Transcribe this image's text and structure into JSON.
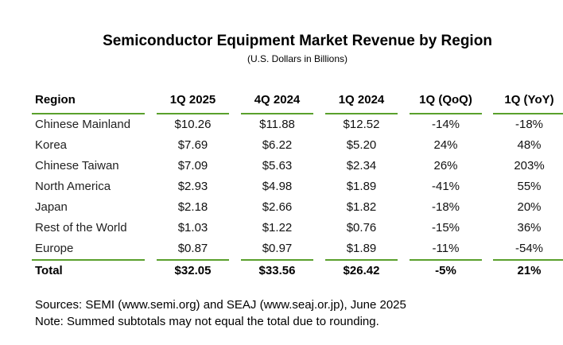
{
  "title": "Semiconductor Equipment Market Revenue by Region",
  "subtitle": "(U.S. Dollars in Billions)",
  "columns": [
    "Region",
    "1Q 2025",
    "4Q 2024",
    "1Q 2024",
    "1Q (QoQ)",
    "1Q (YoY)"
  ],
  "rows": [
    [
      "Chinese Mainland",
      "$10.26",
      "$11.88",
      "$12.52",
      "-14%",
      "-18%"
    ],
    [
      "Korea",
      "$7.69",
      "$6.22",
      "$5.20",
      "24%",
      "48%"
    ],
    [
      "Chinese Taiwan",
      "$7.09",
      "$5.63",
      "$2.34",
      "26%",
      "203%"
    ],
    [
      "North America",
      "$2.93",
      "$4.98",
      "$1.89",
      "-41%",
      "55%"
    ],
    [
      "Japan",
      "$2.18",
      "$2.66",
      "$1.82",
      "-18%",
      "20%"
    ],
    [
      "Rest of the World",
      "$1.03",
      "$1.22",
      "$0.76",
      "-15%",
      "36%"
    ],
    [
      "Europe",
      "$0.87",
      "$0.97",
      "$1.89",
      "-11%",
      "-54%"
    ]
  ],
  "total": [
    "Total",
    "$32.05",
    "$33.56",
    "$26.42",
    "-5%",
    "21%"
  ],
  "sources": "Sources: SEMI (www.semi.org) and SEAJ (www.seaj.or.jp), June 2025",
  "note": "Note: Summed subtotals may not equal the total due to rounding.",
  "colors": {
    "rule": "#5aa02c"
  }
}
